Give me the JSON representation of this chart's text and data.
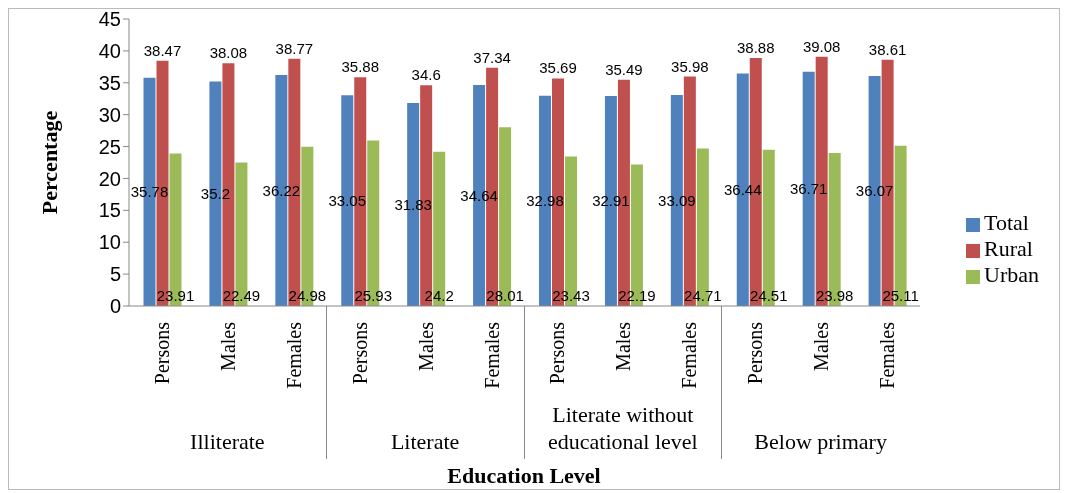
{
  "chart_data": {
    "type": "bar",
    "xlabel": "Education Level",
    "ylabel": "Percentage",
    "categories": [
      "Persons",
      "Males",
      "Females",
      "Persons",
      "Males",
      "Females",
      "Persons",
      "Males",
      "Females",
      "Persons",
      "Males",
      "Females"
    ],
    "annotations": [
      "Illiterate",
      "Literate",
      "Literate without educational level",
      "Below primary"
    ],
    "series": [
      {
        "name": "Total",
        "color": "#4f81bd",
        "values": [
          35.78,
          35.2,
          36.22,
          33.05,
          31.83,
          34.64,
          32.98,
          32.91,
          33.09,
          36.44,
          36.71,
          36.07
        ]
      },
      {
        "name": "Rural",
        "color": "#c0504d",
        "values": [
          38.47,
          38.08,
          38.77,
          35.88,
          34.6,
          37.34,
          35.69,
          35.49,
          35.98,
          38.88,
          39.08,
          38.61
        ]
      },
      {
        "name": "Urban",
        "color": "#9bbb59",
        "values": [
          23.91,
          22.49,
          24.98,
          25.93,
          24.2,
          28.01,
          23.43,
          22.19,
          24.71,
          24.51,
          23.98,
          25.11
        ]
      }
    ],
    "ylim": [
      0,
      45
    ],
    "yticks": [
      0,
      5,
      10,
      15,
      20,
      25,
      30,
      35,
      40,
      45
    ],
    "data_labels": true,
    "legend": "right"
  }
}
